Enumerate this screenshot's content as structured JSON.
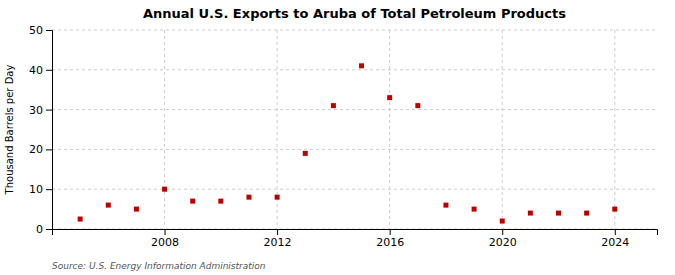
{
  "chart_data": {
    "type": "scatter",
    "title": "Annual U.S. Exports to Aruba of Total Petroleum Products",
    "ylabel": "Thousand Barrels per Day",
    "source": "Source: U.S. Energy Information Administration",
    "x": [
      2005,
      2006,
      2007,
      2008,
      2009,
      2010,
      2011,
      2012,
      2013,
      2014,
      2015,
      2016,
      2017,
      2018,
      2019,
      2020,
      2021,
      2022,
      2023,
      2024
    ],
    "values": [
      2.5,
      6.0,
      5.0,
      10.0,
      7.0,
      7.0,
      8.0,
      8.0,
      19.0,
      31.0,
      41.0,
      33.0,
      31.0,
      6.0,
      5.0,
      2.0,
      4.0,
      4.0,
      4.0,
      5.0
    ],
    "color": "#bb0000",
    "marker": "square",
    "xlim": [
      2004.0,
      2025.5
    ],
    "xticks": [
      2008,
      2012,
      2016,
      2020,
      2024
    ],
    "ylim": [
      0,
      50
    ],
    "yticks": [
      0,
      10,
      20,
      30,
      40,
      50
    ],
    "grid": true
  }
}
